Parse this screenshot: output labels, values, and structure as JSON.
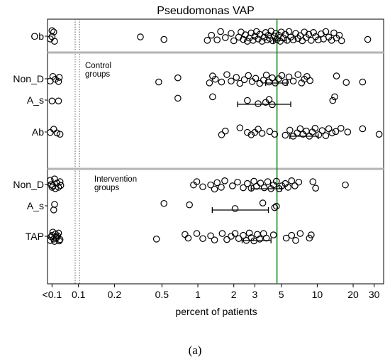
{
  "caption": "(a)",
  "chart_data": {
    "type": "scatter",
    "title": "Pseudomonas VAP",
    "xlabel": "percent of patients",
    "x_scale": "log",
    "xlim": [
      0.055,
      36
    ],
    "x_ticks": [
      {
        "value": 0.06,
        "label": "<0.1"
      },
      {
        "value": 0.1,
        "label": "0.1"
      },
      {
        "value": 0.2,
        "label": "0.2"
      },
      {
        "value": 0.5,
        "label": "0.5"
      },
      {
        "value": 1,
        "label": "1"
      },
      {
        "value": 2,
        "label": "2"
      },
      {
        "value": 3,
        "label": "3"
      },
      {
        "value": 5,
        "label": "5"
      },
      {
        "value": 10,
        "label": "10"
      },
      {
        "value": 20,
        "label": "20"
      },
      {
        "value": 30,
        "label": "30"
      }
    ],
    "reference_line": {
      "value": 4.6,
      "color": "#1a8c1a"
    },
    "annotations": [
      "Control groups",
      "Intervention groups"
    ],
    "colors": {
      "marker": "#000000",
      "separator": "#b4b4b4",
      "axis": "#000000"
    },
    "groups": [
      {
        "label": "Ob",
        "ci": [
          4.3,
          5.5
        ],
        "points": [
          [
            0.06,
            -0.6
          ],
          [
            0.063,
            0.55
          ],
          [
            0.06,
            0.05
          ],
          [
            0.062,
            -0.45
          ],
          [
            0.058,
            0.3
          ],
          [
            0.33,
            0.08
          ],
          [
            0.52,
            0.35
          ],
          [
            1.2,
            0.45
          ],
          [
            1.3,
            -0.1
          ],
          [
            1.45,
            0.4
          ],
          [
            1.55,
            -0.5
          ],
          [
            1.7,
            0.15
          ],
          [
            1.9,
            -0.3
          ],
          [
            2.0,
            0.5
          ],
          [
            2.2,
            0.1
          ],
          [
            2.3,
            -0.45
          ],
          [
            2.4,
            0.35
          ],
          [
            2.5,
            -0.15
          ],
          [
            2.6,
            0.55
          ],
          [
            2.7,
            0.2
          ],
          [
            2.8,
            -0.35
          ],
          [
            2.9,
            0.45
          ],
          [
            3.0,
            0.0
          ],
          [
            3.1,
            -0.5
          ],
          [
            3.2,
            0.3
          ],
          [
            3.3,
            -0.2
          ],
          [
            3.45,
            0.55
          ],
          [
            3.6,
            0.1
          ],
          [
            3.7,
            -0.4
          ],
          [
            3.8,
            0.4
          ],
          [
            3.9,
            -0.1
          ],
          [
            4.0,
            0.25
          ],
          [
            4.1,
            -0.55
          ],
          [
            4.25,
            0.5
          ],
          [
            4.4,
            0.0
          ],
          [
            4.5,
            -0.3
          ],
          [
            4.6,
            0.35
          ],
          [
            4.75,
            -0.1
          ],
          [
            4.9,
            0.55
          ],
          [
            5.0,
            -0.45
          ],
          [
            5.2,
            0.2
          ],
          [
            5.4,
            -0.2
          ],
          [
            5.6,
            0.45
          ],
          [
            5.8,
            -0.5
          ],
          [
            6.0,
            0.1
          ],
          [
            6.3,
            0.4
          ],
          [
            6.6,
            -0.3
          ],
          [
            6.9,
            0.25
          ],
          [
            7.2,
            -0.05
          ],
          [
            7.5,
            0.5
          ],
          [
            7.8,
            -0.45
          ],
          [
            8.1,
            0.15
          ],
          [
            8.5,
            -0.2
          ],
          [
            8.9,
            0.45
          ],
          [
            9.3,
            -0.4
          ],
          [
            9.7,
            0.05
          ],
          [
            10.2,
            0.4
          ],
          [
            10.8,
            -0.25
          ],
          [
            11.3,
            0.3
          ],
          [
            11.8,
            -0.5
          ],
          [
            12.5,
            0.1
          ],
          [
            13.2,
            0.45
          ],
          [
            13.8,
            -0.35
          ],
          [
            14.5,
            0.2
          ],
          [
            15.3,
            -0.1
          ],
          [
            16.0,
            0.5
          ],
          [
            26.5,
            0.35
          ]
        ]
      },
      {
        "label": "Non_D",
        "ci": [
          3.7,
          5.6
        ],
        "points": [
          [
            0.058,
            0.25
          ],
          [
            0.061,
            -0.25
          ],
          [
            0.064,
            0.05
          ],
          [
            0.068,
            0.3
          ],
          [
            0.069,
            -0.15
          ],
          [
            0.47,
            0.35
          ],
          [
            0.68,
            -0.1
          ],
          [
            1.25,
            0.45
          ],
          [
            1.33,
            -0.3
          ],
          [
            1.4,
            0.05
          ],
          [
            1.58,
            0.35
          ],
          [
            1.75,
            -0.45
          ],
          [
            1.9,
            0.25
          ],
          [
            2.1,
            -0.15
          ],
          [
            2.25,
            0.5
          ],
          [
            2.45,
            0.1
          ],
          [
            2.65,
            -0.35
          ],
          [
            2.85,
            0.3
          ],
          [
            3.05,
            -0.05
          ],
          [
            3.3,
            0.5
          ],
          [
            3.55,
            0.15
          ],
          [
            3.75,
            -0.4
          ],
          [
            3.95,
            0.35
          ],
          [
            4.2,
            -0.1
          ],
          [
            4.45,
            0.45
          ],
          [
            4.75,
            0.0
          ],
          [
            5.05,
            -0.35
          ],
          [
            5.4,
            0.4
          ],
          [
            5.8,
            -0.2
          ],
          [
            6.3,
            0.25
          ],
          [
            6.9,
            -0.45
          ],
          [
            7.4,
            0.45
          ],
          [
            7.8,
            0.05
          ],
          [
            8.2,
            -0.25
          ],
          [
            8.7,
            0.2
          ],
          [
            14.5,
            -0.3
          ],
          [
            17.5,
            0.4
          ],
          [
            24.0,
            0.35
          ]
        ]
      },
      {
        "label": "A_s",
        "ci": [
          2.15,
          6.0
        ],
        "points": [
          [
            0.06,
            0.1
          ],
          [
            0.068,
            0.1
          ],
          [
            0.68,
            -0.2
          ],
          [
            1.33,
            -0.35
          ],
          [
            2.6,
            0.05
          ],
          [
            3.2,
            0.4
          ],
          [
            3.7,
            0.25
          ],
          [
            3.95,
            -0.05
          ],
          [
            4.2,
            0.5
          ],
          [
            13.5,
            0.05
          ],
          [
            14.0,
            -0.35
          ]
        ]
      },
      {
        "label": "Ab",
        "ci": [
          5.9,
          10.2
        ],
        "points": [
          [
            0.058,
            0.05
          ],
          [
            0.062,
            -0.3
          ],
          [
            0.066,
            0.1
          ],
          [
            0.07,
            0.25
          ],
          [
            1.58,
            0.3
          ],
          [
            1.7,
            -0.1
          ],
          [
            2.25,
            -0.45
          ],
          [
            2.6,
            0.05
          ],
          [
            2.8,
            0.3
          ],
          [
            3.0,
            0.05
          ],
          [
            3.2,
            -0.3
          ],
          [
            3.45,
            0.15
          ],
          [
            4.0,
            -0.05
          ],
          [
            4.4,
            0.25
          ],
          [
            5.4,
            0.35
          ],
          [
            5.9,
            -0.2
          ],
          [
            6.3,
            0.45
          ],
          [
            6.8,
            0.1
          ],
          [
            7.2,
            -0.35
          ],
          [
            7.6,
            0.25
          ],
          [
            8.1,
            -0.1
          ],
          [
            8.6,
            0.45
          ],
          [
            9.1,
            0.0
          ],
          [
            9.6,
            -0.4
          ],
          [
            10.3,
            0.3
          ],
          [
            11.0,
            -0.15
          ],
          [
            11.8,
            0.4
          ],
          [
            12.5,
            -0.35
          ],
          [
            13.3,
            0.1
          ],
          [
            14.3,
            -0.05
          ],
          [
            15.8,
            -0.4
          ],
          [
            18.0,
            0.0
          ],
          [
            24.0,
            -0.35
          ],
          [
            33.0,
            0.25
          ]
        ]
      },
      {
        "label": "Non_D",
        "ci": [
          2.8,
          5.0
        ],
        "points": [
          [
            0.058,
            -0.45
          ],
          [
            0.061,
            0.15
          ],
          [
            0.064,
            0.45
          ],
          [
            0.066,
            -0.15
          ],
          [
            0.068,
            0.3
          ],
          [
            0.07,
            -0.3
          ],
          [
            0.059,
            0.0
          ],
          [
            0.063,
            -0.6
          ],
          [
            0.071,
            0.1
          ],
          [
            0.06,
            0.3
          ],
          [
            0.92,
            0.05
          ],
          [
            0.98,
            -0.3
          ],
          [
            1.1,
            0.25
          ],
          [
            1.28,
            0.05
          ],
          [
            1.38,
            0.5
          ],
          [
            1.45,
            -0.2
          ],
          [
            1.57,
            0.3
          ],
          [
            1.68,
            -0.4
          ],
          [
            1.95,
            0.15
          ],
          [
            2.15,
            -0.25
          ],
          [
            2.4,
            0.35
          ],
          [
            2.6,
            -0.1
          ],
          [
            2.8,
            0.4
          ],
          [
            2.95,
            -0.35
          ],
          [
            3.1,
            0.2
          ],
          [
            3.35,
            -0.15
          ],
          [
            3.6,
            0.35
          ],
          [
            3.85,
            -0.3
          ],
          [
            4.1,
            0.45
          ],
          [
            4.3,
            0.05
          ],
          [
            4.55,
            -0.35
          ],
          [
            4.8,
            0.45
          ],
          [
            5.05,
            0.15
          ],
          [
            5.4,
            -0.1
          ],
          [
            5.7,
            0.3
          ],
          [
            6.1,
            -0.4
          ],
          [
            6.5,
            0.15
          ],
          [
            7.0,
            -0.25
          ],
          [
            9.7,
            0.4
          ],
          [
            9.2,
            -0.3
          ],
          [
            17.2,
            0.05
          ]
        ]
      },
      {
        "label": "A_s",
        "ci": [
          1.32,
          3.9
        ],
        "points": [
          [
            0.062,
            0.45
          ],
          [
            0.063,
            -0.15
          ],
          [
            0.52,
            -0.25
          ],
          [
            0.85,
            -0.1
          ],
          [
            2.05,
            0.3
          ],
          [
            3.5,
            -0.3
          ],
          [
            4.4,
            0.2
          ],
          [
            4.55,
            0.05
          ]
        ]
      },
      {
        "label": "TAP",
        "ci": [
          2.35,
          4.1
        ],
        "points": [
          [
            0.058,
            0.45
          ],
          [
            0.06,
            -0.1
          ],
          [
            0.062,
            0.3
          ],
          [
            0.064,
            -0.25
          ],
          [
            0.066,
            0.1
          ],
          [
            0.068,
            -0.35
          ],
          [
            0.07,
            0.35
          ],
          [
            0.059,
            0.05
          ],
          [
            0.061,
            -0.45
          ],
          [
            0.063,
            0.55
          ],
          [
            0.065,
            0.2
          ],
          [
            0.067,
            -0.05
          ],
          [
            0.069,
            0.5
          ],
          [
            0.45,
            0.3
          ],
          [
            0.78,
            -0.2
          ],
          [
            0.83,
            0.2
          ],
          [
            0.98,
            -0.3
          ],
          [
            1.1,
            0.25
          ],
          [
            1.28,
            -0.05
          ],
          [
            1.38,
            0.4
          ],
          [
            1.6,
            -0.3
          ],
          [
            1.75,
            0.35
          ],
          [
            1.9,
            0.0
          ],
          [
            2.05,
            -0.3
          ],
          [
            2.2,
            0.25
          ],
          [
            2.4,
            -0.1
          ],
          [
            2.55,
            0.45
          ],
          [
            2.7,
            -0.35
          ],
          [
            2.8,
            0.15
          ],
          [
            2.95,
            0.5
          ],
          [
            3.15,
            -0.2
          ],
          [
            3.3,
            0.3
          ],
          [
            3.55,
            -0.3
          ],
          [
            3.75,
            0.2
          ],
          [
            4.3,
            -0.15
          ],
          [
            5.5,
            0.2
          ],
          [
            6.1,
            -0.1
          ],
          [
            6.6,
            0.45
          ],
          [
            7.2,
            -0.3
          ],
          [
            8.6,
            0.2
          ],
          [
            8.9,
            -0.15
          ]
        ]
      }
    ]
  }
}
